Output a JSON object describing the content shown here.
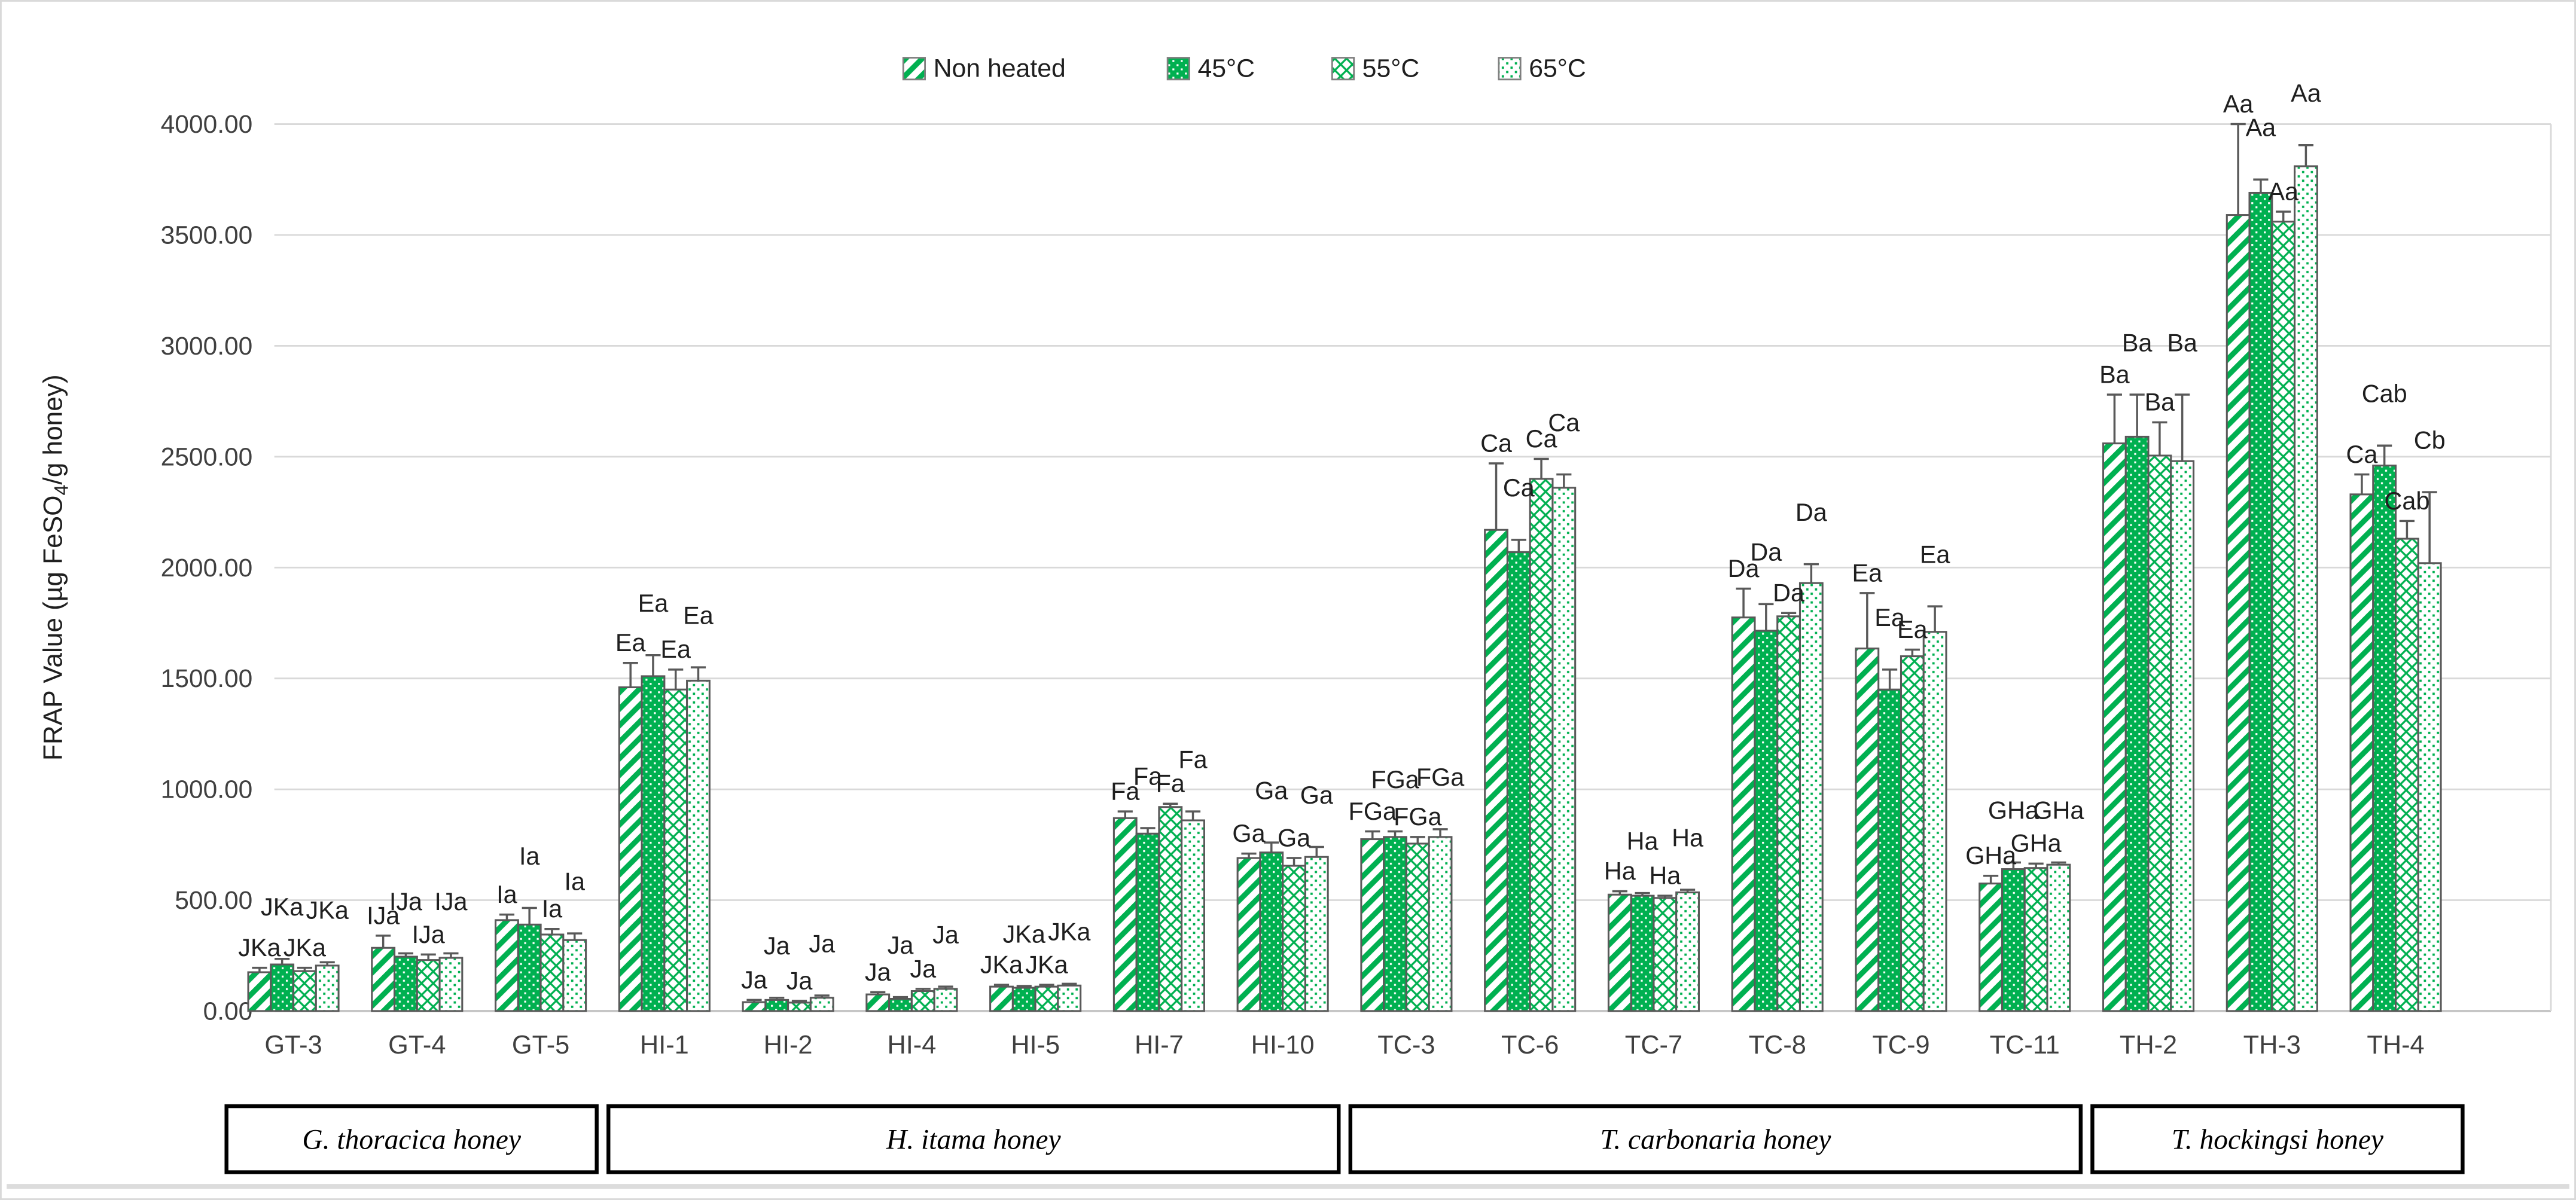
{
  "figure": {
    "background": "#ffffff",
    "border_color": "#d9d9d9",
    "bottom_band_color": "#dcdcdc"
  },
  "colors": {
    "bar_green": "#00B050",
    "bar_outline": "#595959",
    "error_bar": "#595959",
    "gridline": "#d9d9d9",
    "baseline": "#c3c3c3",
    "axis_text": "#404040",
    "letter_text": "#1f1f1f",
    "group_box_border": "#000000"
  },
  "legend": {
    "items": [
      {
        "label": "Non heated",
        "pattern": "diagonal-stripe"
      },
      {
        "label": "45°C",
        "pattern": "white-dots-on-green"
      },
      {
        "label": "55°C",
        "pattern": "diamond-lattice"
      },
      {
        "label": "65°C",
        "pattern": "green-dots"
      }
    ]
  },
  "chart_data": {
    "type": "bar",
    "title": "",
    "ylabel": "FRAP Value (µg FeSO₄/g honey)",
    "ylabel_parts": {
      "pre": "FRAP Value (µg FeSO",
      "sub": "4",
      "post": "/g honey)"
    },
    "xlabel": "",
    "ylim": [
      0,
      4000
    ],
    "ytick_step": 500,
    "ytick_labels": [
      "0.00",
      "500.00",
      "1000.00",
      "1500.00",
      "2000.00",
      "2500.00",
      "3000.00",
      "3500.00",
      "4000.00"
    ],
    "grid": "horizontal",
    "legend_position": "top",
    "categories": [
      "GT-3",
      "GT-4",
      "GT-5",
      "HI-1",
      "HI-2",
      "HI-4",
      "HI-5",
      "HI-7",
      "HI-10",
      "TC-3",
      "TC-6",
      "TC-7",
      "TC-8",
      "TC-9",
      "TC-11",
      "TH-2",
      "TH-3",
      "TH-4"
    ],
    "groups": [
      {
        "label": "G. thoracica honey",
        "from": 0,
        "to": 2
      },
      {
        "label": "H. itama honey",
        "from": 3,
        "to": 8
      },
      {
        "label": "T. carbonaria honey",
        "from": 9,
        "to": 14
      },
      {
        "label": "T. hockingsi honey",
        "from": 15,
        "to": 17
      }
    ],
    "series": [
      {
        "name": "Non heated",
        "values": [
          175,
          285,
          410,
          1460,
          40,
          75,
          110,
          870,
          690,
          775,
          2170,
          525,
          1775,
          1635,
          575,
          2560,
          3590,
          2330
        ],
        "errors": [
          20,
          55,
          25,
          110,
          10,
          10,
          8,
          30,
          20,
          35,
          300,
          15,
          130,
          250,
          35,
          220,
          410,
          90
        ],
        "letters": [
          "JKa",
          "IJa",
          "Ia",
          "Ea",
          "Ja",
          "Ja",
          "JKa",
          "Fa",
          "Ga",
          "FGa",
          "Ca",
          "Ha",
          "Da",
          "Ea",
          "GHa",
          "Ba",
          "Aa",
          "Ca"
        ]
      },
      {
        "name": "45°C",
        "values": [
          210,
          245,
          390,
          1510,
          50,
          55,
          105,
          800,
          715,
          785,
          2070,
          520,
          1715,
          1450,
          640,
          2590,
          3690,
          2460
        ],
        "errors": [
          25,
          15,
          75,
          95,
          10,
          8,
          8,
          25,
          45,
          25,
          55,
          12,
          120,
          90,
          30,
          190,
          60,
          90
        ],
        "letters": [
          "JKa",
          "IJa",
          "Ia",
          "Ea",
          "Ja",
          "Ja",
          "JKa",
          "Fa",
          "Ga",
          "FGa",
          "Ca",
          "Ha",
          "Da",
          "Ea",
          "GHa",
          "Ba",
          "Aa",
          "Cab"
        ]
      },
      {
        "name": "55°C",
        "values": [
          180,
          230,
          345,
          1450,
          38,
          90,
          110,
          920,
          655,
          755,
          2400,
          510,
          1780,
          1600,
          645,
          2505,
          3560,
          2130
        ],
        "errors": [
          15,
          25,
          25,
          90,
          8,
          10,
          8,
          15,
          35,
          30,
          90,
          10,
          15,
          30,
          20,
          150,
          45,
          80
        ],
        "letters": [
          "JKa",
          "IJa",
          "Ia",
          "Ea",
          "Ja",
          "Ja",
          "JKa",
          "Fa",
          "Ga",
          "FGa",
          "Ca",
          "Ha",
          "Da",
          "Ea",
          "GHa",
          "Ba",
          "Aa",
          "Cab"
        ]
      },
      {
        "name": "65°C",
        "values": [
          205,
          240,
          320,
          1490,
          60,
          100,
          115,
          860,
          695,
          785,
          2360,
          535,
          1930,
          1710,
          660,
          2480,
          3810,
          2020
        ],
        "errors": [
          15,
          20,
          30,
          60,
          10,
          10,
          8,
          40,
          45,
          35,
          60,
          12,
          85,
          115,
          10,
          300,
          95,
          320
        ],
        "letters": [
          "JKa",
          "IJa",
          "Ia",
          "Ea",
          "Ja",
          "Ja",
          "JKa",
          "Fa",
          "Ga",
          "FGa",
          "Ca",
          "Ha",
          "Da",
          "Ea",
          "GHa",
          "Ba",
          "Aa",
          "Cb"
        ]
      }
    ]
  }
}
